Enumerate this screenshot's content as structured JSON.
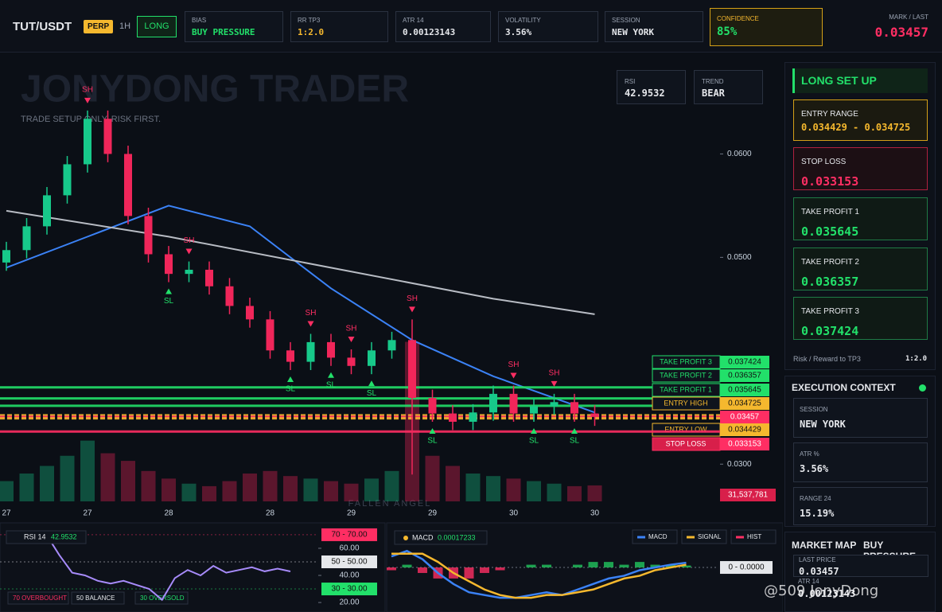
{
  "header": {
    "symbol": "TUT/USDT",
    "badge": "PERP",
    "timeframe": "1H",
    "side": "LONG",
    "stats": [
      {
        "label": "BIAS",
        "value": "BUY PRESSURE"
      },
      {
        "label": "RR TP3",
        "value": "1:2.0"
      },
      {
        "label": "ATR 14",
        "value": "0.00123143"
      },
      {
        "label": "VOLATILITY",
        "value": "3.56%"
      },
      {
        "label": "SESSION",
        "value": "NEW YORK"
      }
    ],
    "confidence": {
      "label": "CONFIDENCE",
      "value": "85%"
    },
    "mark": {
      "label": "MARK / LAST",
      "value": "0.03457"
    }
  },
  "overlay": {
    "watermark": "JONYDONG TRADER",
    "tagline": "TRADE SETUP ONLY. RISK FIRST.",
    "rsi_label": "RSI",
    "rsi_value": "42.9532",
    "trend_label": "TREND",
    "trend_value": "BEAR",
    "pattern": "FALLEN ANGEL",
    "credit": "@509 JonyDong"
  },
  "chart_data": [
    {
      "type": "candlestick",
      "categories": [
        "27",
        null,
        null,
        null,
        "27",
        null,
        null,
        null,
        "28",
        null,
        null,
        null,
        null,
        "28",
        null,
        null,
        null,
        "29",
        null,
        null,
        null,
        "29",
        null,
        null,
        null,
        "30",
        null,
        null,
        null,
        "30"
      ],
      "open": [
        0.0495,
        0.0507,
        0.053,
        0.056,
        0.059,
        0.0634,
        0.06,
        0.054,
        0.0503,
        0.0484,
        0.0488,
        0.0472,
        0.0453,
        0.044,
        0.041,
        0.0399,
        0.0418,
        0.0403,
        0.0395,
        0.041,
        0.042,
        0.0364,
        0.0349,
        0.0341,
        0.035,
        0.0368,
        0.0349,
        0.0356,
        0.036,
        0.0349
      ],
      "high": [
        0.0515,
        0.0538,
        0.0568,
        0.0598,
        0.0642,
        0.0642,
        0.0608,
        0.0548,
        0.0511,
        0.0496,
        0.0496,
        0.048,
        0.0461,
        0.0448,
        0.0418,
        0.0426,
        0.0426,
        0.0411,
        0.0418,
        0.0428,
        0.044,
        0.0372,
        0.0357,
        0.0358,
        0.0376,
        0.0376,
        0.0364,
        0.0368,
        0.0368,
        0.0357
      ],
      "low": [
        0.0487,
        0.0499,
        0.0522,
        0.0552,
        0.0582,
        0.0592,
        0.0532,
        0.0495,
        0.0476,
        0.0476,
        0.0464,
        0.0445,
        0.0432,
        0.0402,
        0.0391,
        0.0391,
        0.0395,
        0.0387,
        0.0387,
        0.0402,
        0.029,
        0.0341,
        0.0333,
        0.0333,
        0.0342,
        0.0341,
        0.0341,
        0.0348,
        0.0341,
        0.0337
      ],
      "close": [
        0.0507,
        0.053,
        0.056,
        0.059,
        0.0634,
        0.06,
        0.054,
        0.0503,
        0.0484,
        0.0488,
        0.0472,
        0.0453,
        0.044,
        0.041,
        0.0399,
        0.0418,
        0.0403,
        0.0395,
        0.041,
        0.042,
        0.0364,
        0.0349,
        0.0341,
        0.035,
        0.0368,
        0.0349,
        0.0356,
        0.036,
        0.0349,
        0.03457
      ],
      "up_color": "#17c98a",
      "down_color": "#f0265a",
      "ylim": [
        0.0264,
        0.0695
      ],
      "yticks": [
        {
          "value": 0.06,
          "label": "0.0600"
        },
        {
          "value": 0.05,
          "label": "0.0500"
        },
        {
          "value": 0.03,
          "label": "0.0300"
        }
      ],
      "signals_high": [
        null,
        null,
        null,
        null,
        "SH",
        null,
        null,
        null,
        null,
        "SH",
        null,
        null,
        null,
        null,
        null,
        "SH",
        null,
        "SH",
        null,
        null,
        "SH",
        null,
        null,
        null,
        null,
        "SH",
        null,
        "SH",
        null,
        null
      ],
      "signals_low": [
        null,
        null,
        null,
        null,
        null,
        null,
        null,
        null,
        "SL",
        null,
        null,
        null,
        null,
        null,
        "SL",
        null,
        "SL",
        null,
        "SL",
        null,
        null,
        "SL",
        null,
        null,
        null,
        null,
        "SL",
        null,
        "SL",
        null
      ],
      "lines": [
        {
          "color": "#3b82f6",
          "x": [
            0,
            4,
            8,
            12,
            16,
            20,
            24,
            29
          ],
          "values": [
            0.049,
            0.052,
            0.055,
            0.053,
            0.047,
            0.042,
            0.0385,
            0.035
          ]
        },
        {
          "color": "#b8bcc4",
          "x": [
            0,
            8,
            16,
            24,
            29
          ],
          "values": [
            0.0545,
            0.052,
            0.049,
            0.046,
            0.0445
          ]
        }
      ],
      "levels": [
        {
          "name": "TAKE PROFIT 3",
          "value": 0.037424,
          "color": "#22e06a",
          "style": "solid"
        },
        {
          "name": "TAKE PROFIT 2",
          "value": 0.036357,
          "color": "#22e06a",
          "style": "solid"
        },
        {
          "name": "TAKE PROFIT 1",
          "value": 0.035645,
          "color": "#22e06a",
          "style": "solid"
        },
        {
          "name": "ENTRY HIGH",
          "value": 0.034725,
          "color": "#f5b82e",
          "style": "dashed"
        },
        {
          "value": 0.03457,
          "color": "#ff2e63",
          "style": "dashed"
        },
        {
          "name": "ENTRY LOW",
          "value": 0.034429,
          "color": "#f5b82e",
          "style": "dashed"
        },
        {
          "name": "STOP LOSS",
          "value": 0.033153,
          "color": "#ff2e63",
          "style": "solid"
        }
      ],
      "volume": {
        "values": [
          40000000,
          55000000,
          70000000,
          90000000,
          120000000,
          95000000,
          80000000,
          60000000,
          45000000,
          35000000,
          30000000,
          40000000,
          55000000,
          60000000,
          50000000,
          45000000,
          40000000,
          35000000,
          45000000,
          60000000,
          315000000,
          90000000,
          70000000,
          55000000,
          50000000,
          45000000,
          40000000,
          35000000,
          30000000,
          31537781
        ],
        "value_labels": [
          null,
          null,
          null,
          null,
          null,
          null,
          null,
          null,
          null,
          null,
          null,
          null,
          null,
          null,
          null,
          null,
          null,
          null,
          null,
          null,
          null,
          null,
          null,
          null,
          null,
          null,
          null,
          null,
          null,
          "31,537,781"
        ],
        "ylim": [
          0,
          330000000
        ]
      }
    },
    {
      "type": "line",
      "title": "RSI 14",
      "last": "42.9532",
      "color": "#a78bfa",
      "values": [
        68,
        72,
        66,
        70,
        55,
        42,
        40,
        36,
        34,
        36,
        33,
        30,
        22,
        38,
        44,
        40,
        47,
        42,
        44,
        46,
        43,
        45,
        42.9532
      ],
      "ylim": [
        13,
        77
      ],
      "yticks": [
        {
          "value": 60,
          "label": "60.00"
        },
        {
          "value": 40,
          "label": "40.00"
        },
        {
          "value": 20,
          "label": "20.00"
        }
      ],
      "levels": [
        {
          "value": 70,
          "label": "70 - 70.00",
          "color": "#ff2e63"
        },
        {
          "value": 50,
          "label": "50 - 50.00",
          "color": "#e5e7eb"
        },
        {
          "value": 30,
          "label": "30 - 30.00",
          "color": "#22e06a"
        }
      ],
      "legend": [
        "70 OVERBOUGHT",
        "50 BALANCE",
        "30 OVERSOLD"
      ]
    },
    {
      "type": "macd",
      "title": "MACD",
      "last": "0.00017233",
      "series": [
        {
          "name": "MACD",
          "color": "#3b82f6",
          "values": [
            0.0004,
            0.0006,
            0.0003,
            -0.0002,
            -0.0006,
            -0.0009,
            -0.001,
            -0.0011,
            -0.0011,
            -0.001,
            -0.0009,
            -0.001,
            -0.0008,
            -0.0006,
            -0.0004,
            -0.0003,
            -0.0001,
            0.0,
            0.0001,
            0.00017233
          ]
        },
        {
          "name": "SIGNAL",
          "color": "#f5b82e",
          "values": [
            0.0005,
            0.0005,
            0.0005,
            0.0002,
            -0.0002,
            -0.0005,
            -0.0008,
            -0.001,
            -0.0011,
            -0.0011,
            -0.001,
            -0.001,
            -0.0009,
            -0.0008,
            -0.0006,
            -0.0004,
            -0.0003,
            -0.0001,
            0.0,
            0.0001
          ]
        }
      ],
      "hist": {
        "name": "HIST",
        "up_color": "#22c55e",
        "down_color": "#ff2e63",
        "values": [
          -0.0001,
          0.0001,
          -0.0002,
          -0.0004,
          -0.0004,
          -0.0004,
          -0.0002,
          -0.0001,
          0,
          0.0001,
          0.0001,
          0,
          0.0001,
          0.0002,
          0.0002,
          0.0001,
          0.0002,
          0.0001,
          0.0001,
          7e-05
        ]
      },
      "ylim": [
        -0.0015,
        0.0013
      ],
      "yticks": [
        {
          "value": 0,
          "label": "0 - 0.0000"
        }
      ]
    }
  ],
  "sidebar": {
    "title": "LONG SET UP",
    "entry": {
      "label": "ENTRY RANGE",
      "value": "0.034429 - 0.034725"
    },
    "stop": {
      "label": "STOP LOSS",
      "value": "0.033153"
    },
    "targets": [
      {
        "label": "TAKE PROFIT 1",
        "value": "0.035645"
      },
      {
        "label": "TAKE PROFIT 2",
        "value": "0.036357"
      },
      {
        "label": "TAKE PROFIT 3",
        "value": "0.037424"
      }
    ],
    "rr": {
      "label": "Risk / Reward to TP3",
      "value": "1:2.0"
    },
    "context": {
      "title": "EXECUTION CONTEXT",
      "items": [
        {
          "label": "SESSION",
          "value": "NEW YORK"
        },
        {
          "label": "ATR %",
          "value": "3.56%"
        },
        {
          "label": "RANGE 24",
          "value": "15.19%"
        }
      ]
    },
    "market": {
      "title": "MARKET MAP",
      "state": "BUY PRESSURE",
      "last_label": "LAST PRICE",
      "last_value": "0.03457",
      "atr_label": "ATR 14",
      "atr_value": "0.00123143"
    }
  }
}
